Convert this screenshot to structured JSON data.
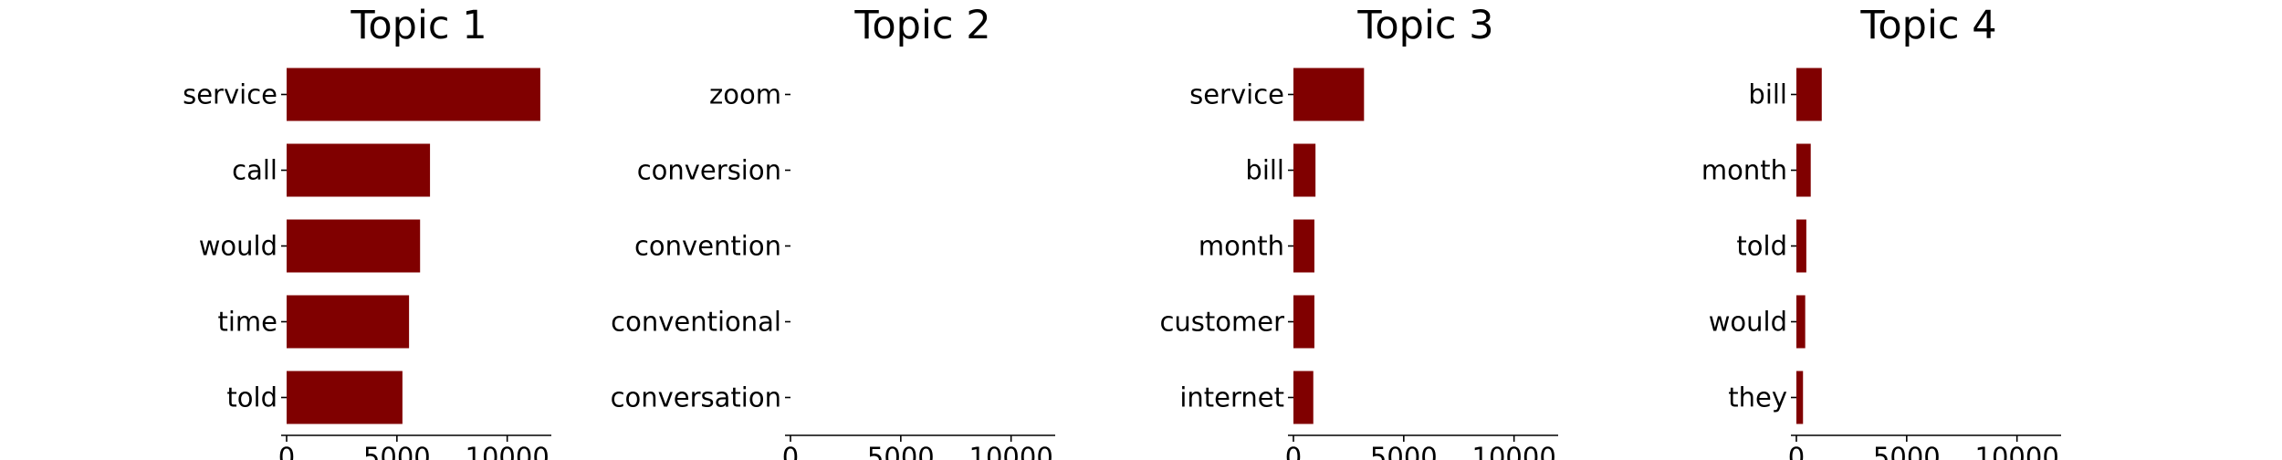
{
  "chart_data": [
    {
      "type": "bar",
      "orientation": "horizontal",
      "title": "Topic 1",
      "categories": [
        "service",
        "call",
        "would",
        "time",
        "told"
      ],
      "values": [
        11500,
        6500,
        6050,
        5550,
        5250
      ],
      "xlim": [
        0,
        12000
      ],
      "xticks": [
        0,
        5000,
        10000
      ],
      "xtick_labels": [
        "0",
        "5000",
        "10000"
      ],
      "color": "#800000"
    },
    {
      "type": "bar",
      "orientation": "horizontal",
      "title": "Topic 2",
      "categories": [
        "zoom",
        "conversion",
        "convention",
        "conventional",
        "conversation"
      ],
      "values": [
        0,
        0,
        0,
        0,
        0
      ],
      "xlim": [
        0,
        12000
      ],
      "xticks": [
        0,
        5000,
        10000
      ],
      "xtick_labels": [
        "0",
        "5000",
        "10000"
      ],
      "color": "#800000"
    },
    {
      "type": "bar",
      "orientation": "horizontal",
      "title": "Topic 3",
      "categories": [
        "service",
        "bill",
        "month",
        "customer",
        "internet"
      ],
      "values": [
        3200,
        1000,
        950,
        950,
        900
      ],
      "xlim": [
        0,
        12000
      ],
      "xticks": [
        0,
        5000,
        10000
      ],
      "xtick_labels": [
        "0",
        "5000",
        "10000"
      ],
      "color": "#800000"
    },
    {
      "type": "bar",
      "orientation": "horizontal",
      "title": "Topic 4",
      "categories": [
        "bill",
        "month",
        "told",
        "would",
        "they"
      ],
      "values": [
        1150,
        650,
        450,
        400,
        300
      ],
      "xlim": [
        0,
        12000
      ],
      "xticks": [
        0,
        5000,
        10000
      ],
      "xtick_labels": [
        "0",
        "5000",
        "10000"
      ],
      "color": "#800000"
    }
  ]
}
